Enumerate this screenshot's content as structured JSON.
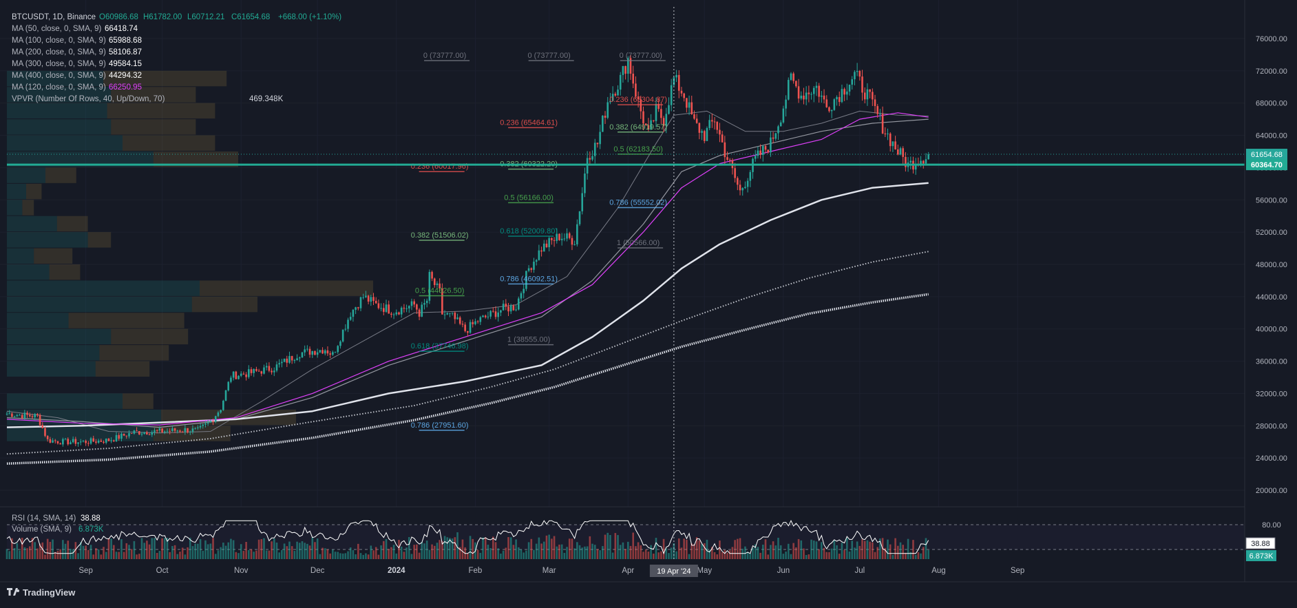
{
  "legend": {
    "symbol": "BTCUSDT, 1D, Binance",
    "ohlc": {
      "open": "O60986.68",
      "high": "H61782.00",
      "low": "L60712.21",
      "close": "C61654.68",
      "change": "+668.00 (+1.10%)"
    },
    "indicators": [
      {
        "label": "MA (50, close, 0, SMA, 9)",
        "value": "66418.74",
        "color": "#ffffff"
      },
      {
        "label": "MA (100, close, 0, SMA, 9)",
        "value": "65988.68",
        "color": "#ffffff"
      },
      {
        "label": "MA (200, close, 0, SMA, 9)",
        "value": "58106.87",
        "color": "#ffffff"
      },
      {
        "label": "MA (300, close, 0, SMA, 9)",
        "value": "49584.15",
        "color": "#ffffff"
      },
      {
        "label": "MA (400, close, 0, SMA, 9)",
        "value": "44294.32",
        "color": "#ffffff"
      },
      {
        "label": "MA (120, close, 0, SMA, 9)",
        "value": "66250.95",
        "color": "#e040fb"
      }
    ],
    "vpvr": {
      "label": "VPVR (Number Of Rows, 40, Up/Down, 70)",
      "value": "469.348K"
    }
  },
  "price_axis": {
    "ticks": [
      "76000.00",
      "72000.00",
      "68000.00",
      "64000.00",
      "60000.00",
      "56000.00",
      "52000.00",
      "48000.00",
      "44000.00",
      "40000.00",
      "36000.00",
      "32000.00",
      "28000.00",
      "24000.00",
      "20000.00"
    ],
    "last_price": "61654.68",
    "level_price": "60364.70"
  },
  "time_axis": {
    "labels": [
      "Sep",
      "Oct",
      "Nov",
      "Dec",
      "2024",
      "Feb",
      "Mar",
      "Apr",
      "May",
      "Jun",
      "Jul",
      "Aug",
      "Sep"
    ],
    "crosshair_label": "19 Apr '24"
  },
  "rsi": {
    "label": "RSI (14, SMA, 14)",
    "value": "38.88",
    "axis_tick": "80.00",
    "badge": "38.88"
  },
  "volume": {
    "label": "Volume (SMA, 9)",
    "value": "6.873K",
    "badge": "6.873K"
  },
  "fib_labels": [
    {
      "text": "0 (73777.00)",
      "price": 73777,
      "day": 172
    },
    {
      "text": "0 (73777.00)",
      "price": 73777,
      "day": 213
    },
    {
      "text": "0 (73777.00)",
      "price": 73777,
      "day": 249
    },
    {
      "text": "0.236 (68304.87)",
      "price": 68304.87,
      "day": 248
    },
    {
      "text": "0.236 (65464.61)",
      "price": 65464.61,
      "day": 205
    },
    {
      "text": "0.382 (64919.57)",
      "price": 64919.57,
      "day": 248
    },
    {
      "text": "0.5 (62183.50)",
      "price": 62183.5,
      "day": 248
    },
    {
      "text": "0.236 (60017.96)",
      "price": 60017.96,
      "day": 170
    },
    {
      "text": "0.382 (60322.20)",
      "price": 60322.2,
      "day": 205
    },
    {
      "text": "0.5 (56166.00)",
      "price": 56166,
      "day": 205
    },
    {
      "text": "0.786 (55552.02)",
      "price": 55552.02,
      "day": 248
    },
    {
      "text": "0.382 (51506.02)",
      "price": 51506.02,
      "day": 170
    },
    {
      "text": "0.618 (52009.80)",
      "price": 52009.8,
      "day": 205
    },
    {
      "text": "1 (50566.00)",
      "price": 50566,
      "day": 248
    },
    {
      "text": "0.786 (46092.51)",
      "price": 46092.51,
      "day": 205
    },
    {
      "text": "0.5 (44626.50)",
      "price": 44626.5,
      "day": 170
    },
    {
      "text": "1 (38555.00)",
      "price": 38555,
      "day": 205
    },
    {
      "text": "0.618 (37746.98)",
      "price": 37746.98,
      "day": 170
    },
    {
      "text": "0.786 (27951.60)",
      "price": 27951.6,
      "day": 170
    }
  ],
  "branding": "TradingView",
  "colors": {
    "up": "#26a69a",
    "down": "#ef5350",
    "level": "#22ab94",
    "ma120": "#e040fb",
    "bg": "#161a25"
  },
  "chart_data": {
    "type": "candlestick",
    "x_unit": "days since 2023-08-01",
    "ylim": [
      18500,
      79000
    ],
    "horizontal_level": 60364.7,
    "crosshair_day": 262,
    "price_anchors": [
      [
        0,
        29500
      ],
      [
        6,
        29300
      ],
      [
        12,
        29200
      ],
      [
        16,
        26200
      ],
      [
        22,
        26000
      ],
      [
        30,
        26000
      ],
      [
        40,
        26200
      ],
      [
        50,
        27200
      ],
      [
        60,
        27300
      ],
      [
        70,
        27500
      ],
      [
        75,
        27400
      ],
      [
        80,
        28500
      ],
      [
        84,
        30200
      ],
      [
        88,
        34200
      ],
      [
        95,
        34500
      ],
      [
        105,
        35200
      ],
      [
        115,
        37000
      ],
      [
        125,
        37500
      ],
      [
        128,
        36800
      ],
      [
        135,
        42000
      ],
      [
        140,
        44000
      ],
      [
        145,
        43000
      ],
      [
        152,
        42200
      ],
      [
        160,
        43000
      ],
      [
        162,
        42000
      ],
      [
        170,
        44500
      ],
      [
        165,
        43500
      ],
      [
        166,
        46500
      ],
      [
        170,
        42000
      ],
      [
        175,
        41500
      ],
      [
        180,
        39800
      ],
      [
        185,
        41000
      ],
      [
        195,
        42500
      ],
      [
        200,
        42800
      ],
      [
        205,
        47500
      ],
      [
        210,
        50000
      ],
      [
        217,
        51500
      ],
      [
        223,
        51000
      ],
      [
        226,
        57000
      ],
      [
        228,
        61500
      ],
      [
        232,
        63000
      ],
      [
        236,
        68300
      ],
      [
        241,
        71000
      ],
      [
        244,
        73500
      ],
      [
        248,
        68000
      ],
      [
        252,
        64000
      ],
      [
        255,
        67000
      ],
      [
        258,
        66000
      ],
      [
        262,
        71000
      ],
      [
        266,
        69000
      ],
      [
        270,
        65500
      ],
      [
        274,
        64000
      ],
      [
        278,
        66000
      ],
      [
        282,
        62000
      ],
      [
        288,
        57000
      ],
      [
        294,
        61000
      ],
      [
        300,
        63000
      ],
      [
        304,
        66500
      ],
      [
        308,
        71000
      ],
      [
        312,
        69000
      ],
      [
        318,
        70000
      ],
      [
        322,
        67500
      ],
      [
        328,
        69500
      ],
      [
        333,
        71500
      ],
      [
        338,
        69000
      ],
      [
        342,
        66500
      ],
      [
        345,
        64500
      ],
      [
        350,
        62000
      ],
      [
        354,
        60300
      ],
      [
        358,
        61000
      ],
      [
        362,
        61654
      ]
    ],
    "moving_averages": [
      {
        "name": "MA (50, close, 0, SMA, 9)",
        "pts": [
          [
            0,
            29800
          ],
          [
            20,
            29000
          ],
          [
            40,
            27300
          ],
          [
            60,
            27100
          ],
          [
            80,
            27300
          ],
          [
            100,
            31000
          ],
          [
            120,
            35000
          ],
          [
            140,
            38500
          ],
          [
            160,
            42000
          ],
          [
            180,
            42200
          ],
          [
            200,
            43000
          ],
          [
            220,
            46500
          ],
          [
            240,
            55000
          ],
          [
            255,
            63000
          ],
          [
            262,
            66500
          ],
          [
            275,
            67000
          ],
          [
            290,
            64500
          ],
          [
            305,
            64500
          ],
          [
            320,
            65500
          ],
          [
            335,
            67000
          ],
          [
            350,
            66500
          ],
          [
            362,
            66400
          ]
        ]
      },
      {
        "name": "MA (100, close, 0, SMA, 9)",
        "pts": [
          [
            0,
            29000
          ],
          [
            30,
            28500
          ],
          [
            60,
            27800
          ],
          [
            90,
            28800
          ],
          [
            120,
            31500
          ],
          [
            150,
            35500
          ],
          [
            180,
            38500
          ],
          [
            210,
            41500
          ],
          [
            230,
            46000
          ],
          [
            250,
            53000
          ],
          [
            265,
            59500
          ],
          [
            280,
            61500
          ],
          [
            300,
            63000
          ],
          [
            320,
            64500
          ],
          [
            340,
            65500
          ],
          [
            362,
            66000
          ]
        ]
      },
      {
        "name": "MA (200, close, 0, SMA, 9)",
        "pts": [
          [
            0,
            27800
          ],
          [
            30,
            28000
          ],
          [
            60,
            28400
          ],
          [
            90,
            28800
          ],
          [
            120,
            29800
          ],
          [
            150,
            32000
          ],
          [
            180,
            33500
          ],
          [
            210,
            35500
          ],
          [
            230,
            39000
          ],
          [
            250,
            43500
          ],
          [
            265,
            47500
          ],
          [
            280,
            50500
          ],
          [
            300,
            53500
          ],
          [
            320,
            56000
          ],
          [
            340,
            57500
          ],
          [
            362,
            58100
          ]
        ]
      },
      {
        "name": "MA (300, close, 0, SMA, 9)",
        "pts": [
          [
            0,
            24500
          ],
          [
            40,
            25200
          ],
          [
            80,
            26400
          ],
          [
            120,
            28500
          ],
          [
            160,
            30500
          ],
          [
            190,
            32800
          ],
          [
            215,
            35000
          ],
          [
            240,
            38000
          ],
          [
            265,
            41000
          ],
          [
            290,
            43800
          ],
          [
            315,
            46300
          ],
          [
            340,
            48300
          ],
          [
            362,
            49600
          ]
        ]
      },
      {
        "name": "MA (400, close, 0, SMA, 9)",
        "pts": [
          [
            0,
            23300
          ],
          [
            40,
            23800
          ],
          [
            80,
            24800
          ],
          [
            120,
            26500
          ],
          [
            160,
            28700
          ],
          [
            190,
            30800
          ],
          [
            215,
            32800
          ],
          [
            240,
            35300
          ],
          [
            265,
            37800
          ],
          [
            290,
            39900
          ],
          [
            315,
            41900
          ],
          [
            340,
            43300
          ],
          [
            362,
            44300
          ]
        ]
      },
      {
        "name": "MA (120, close, 0, SMA, 9)",
        "pts": [
          [
            0,
            28800
          ],
          [
            30,
            28300
          ],
          [
            60,
            28100
          ],
          [
            90,
            29000
          ],
          [
            120,
            32000
          ],
          [
            150,
            36000
          ],
          [
            180,
            39000
          ],
          [
            210,
            42000
          ],
          [
            230,
            45500
          ],
          [
            250,
            52000
          ],
          [
            265,
            57500
          ],
          [
            280,
            60500
          ],
          [
            300,
            62000
          ],
          [
            320,
            63500
          ],
          [
            335,
            66000
          ],
          [
            350,
            66800
          ],
          [
            362,
            66250
          ]
        ]
      }
    ],
    "vpvr_rows": [
      {
        "price": 71000,
        "up": 0.25,
        "down": 0.32
      },
      {
        "price": 69000,
        "up": 0.27,
        "down": 0.22
      },
      {
        "price": 67000,
        "up": 0.26,
        "down": 0.28
      },
      {
        "price": 65000,
        "up": 0.27,
        "down": 0.22
      },
      {
        "price": 63000,
        "up": 0.3,
        "down": 0.24
      },
      {
        "price": 61000,
        "up": 0.38,
        "down": 0.22
      },
      {
        "price": 59000,
        "up": 0.1,
        "down": 0.08
      },
      {
        "price": 57000,
        "up": 0.05,
        "down": 0.04
      },
      {
        "price": 55000,
        "up": 0.04,
        "down": 0.03
      },
      {
        "price": 53000,
        "up": 0.13,
        "down": 0.08
      },
      {
        "price": 51000,
        "up": 0.21,
        "down": 0.06
      },
      {
        "price": 49000,
        "up": 0.07,
        "down": 0.1
      },
      {
        "price": 47000,
        "up": 0.11,
        "down": 0.08
      },
      {
        "price": 45000,
        "up": 0.5,
        "down": 0.45
      },
      {
        "price": 43000,
        "up": 0.48,
        "down": 0.17
      },
      {
        "price": 41000,
        "up": 0.16,
        "down": 0.3
      },
      {
        "price": 39000,
        "up": 0.27,
        "down": 0.2
      },
      {
        "price": 37000,
        "up": 0.24,
        "down": 0.18
      },
      {
        "price": 35000,
        "up": 0.23,
        "down": 0.14
      },
      {
        "price": 31000,
        "up": 0.3,
        "down": 0.08
      },
      {
        "price": 29000,
        "up": 0.4,
        "down": 0.35
      },
      {
        "price": 27000,
        "up": 0.38,
        "down": 0.2
      }
    ]
  }
}
